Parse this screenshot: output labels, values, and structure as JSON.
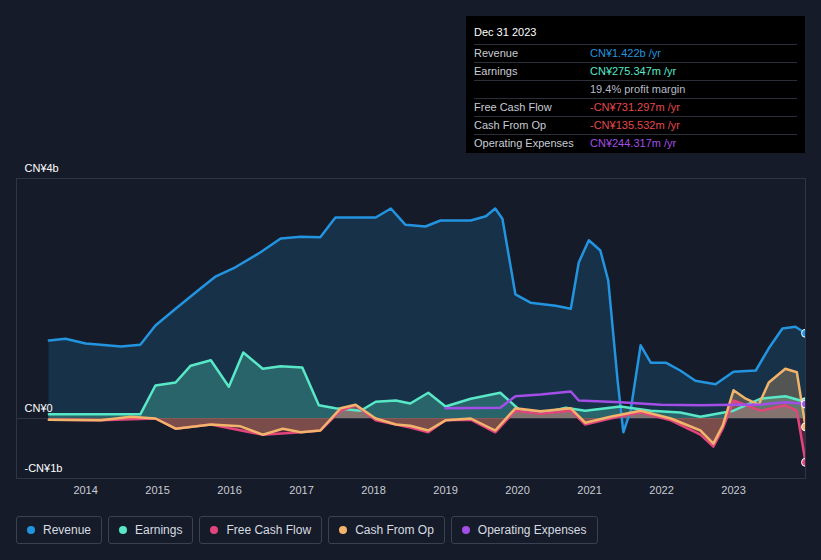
{
  "chart_data": {
    "type": "area",
    "grid": true,
    "marker": "end_dot",
    "xlim": [
      2013.04,
      2024
    ],
    "xticks": [
      2014,
      2015,
      2016,
      2017,
      2018,
      2019,
      2020,
      2021,
      2022,
      2023
    ],
    "ylim": [
      -1,
      4
    ],
    "yticks": [
      {
        "value": -1,
        "label": "-CN¥1b"
      },
      {
        "value": 0,
        "label": "CN¥0"
      },
      {
        "value": 4,
        "label": "CN¥4b"
      }
    ],
    "series": [
      {
        "name": "Revenue",
        "color": "#2394df",
        "type": "area",
        "x": [
          2013.49,
          2013.72,
          2014,
          2014.21,
          2014.49,
          2014.76,
          2014.97,
          2015.25,
          2015.6,
          2015.81,
          2016.08,
          2016.43,
          2016.71,
          2016.99,
          2017.26,
          2017.47,
          2018.03,
          2018.24,
          2018.44,
          2018.72,
          2018.93,
          2019.35,
          2019.56,
          2019.69,
          2019.79,
          2019.97,
          2020.18,
          2020.53,
          2020.74,
          2020.85,
          2020.99,
          2021.15,
          2021.26,
          2021.39,
          2021.47,
          2021.57,
          2021.71,
          2021.85,
          2022.06,
          2022.26,
          2022.47,
          2022.75,
          2023,
          2023.31,
          2023.49,
          2023.68,
          2023.86,
          2024
        ],
        "values": [
          1.3,
          1.33,
          1.25,
          1.23,
          1.2,
          1.23,
          1.55,
          1.83,
          2.17,
          2.37,
          2.52,
          2.77,
          3.0,
          3.03,
          3.02,
          3.35,
          3.35,
          3.5,
          3.23,
          3.2,
          3.3,
          3.3,
          3.37,
          3.5,
          3.33,
          2.07,
          1.93,
          1.88,
          1.83,
          2.6,
          2.97,
          2.8,
          2.3,
          0.63,
          -0.23,
          0.13,
          1.22,
          0.93,
          0.93,
          0.8,
          0.63,
          0.57,
          0.78,
          0.8,
          1.17,
          1.5,
          1.53,
          1.42
        ]
      },
      {
        "name": "Earnings",
        "color": "#58e8c7",
        "type": "area",
        "x": [
          2013.49,
          2014.76,
          2014.97,
          2015.25,
          2015.46,
          2015.74,
          2015.99,
          2016.19,
          2016.46,
          2016.71,
          2017.01,
          2017.24,
          2017.47,
          2017.82,
          2018.03,
          2018.31,
          2018.51,
          2018.76,
          2019,
          2019.35,
          2019.76,
          2020.04,
          2020.39,
          2020.67,
          2020.94,
          2021.43,
          2021.85,
          2022.26,
          2022.54,
          2023,
          2023.38,
          2023.72,
          2023.93,
          2024
        ],
        "values": [
          0.07,
          0.07,
          0.55,
          0.6,
          0.88,
          0.97,
          0.53,
          1.1,
          0.83,
          0.87,
          0.85,
          0.22,
          0.17,
          0.13,
          0.28,
          0.3,
          0.25,
          0.43,
          0.2,
          0.33,
          0.43,
          0.13,
          0.1,
          0.18,
          0.13,
          0.2,
          0.13,
          0.1,
          0.03,
          0.13,
          0.33,
          0.37,
          0.3,
          0.28
        ]
      },
      {
        "name": "Free Cash Flow",
        "color": "#e0457b",
        "type": "area",
        "x": [
          2013.49,
          2014.21,
          2014.97,
          2015.25,
          2015.74,
          2016.46,
          2016.99,
          2017.26,
          2017.54,
          2017.75,
          2018.03,
          2018.51,
          2018.76,
          2019,
          2019.35,
          2019.69,
          2019.97,
          2020.32,
          2020.74,
          2020.94,
          2021.29,
          2021.71,
          2022.13,
          2022.54,
          2022.72,
          2022.85,
          2023,
          2023.38,
          2023.72,
          2023.88,
          2024
        ],
        "values": [
          -0.02,
          -0.03,
          0,
          -0.17,
          -0.1,
          -0.27,
          -0.23,
          -0.2,
          0.13,
          0.22,
          -0.03,
          -0.15,
          -0.23,
          -0.03,
          -0.02,
          -0.23,
          0.13,
          0.08,
          0.13,
          -0.1,
          0,
          0.1,
          -0.03,
          -0.27,
          -0.47,
          -0.17,
          0.3,
          0.13,
          0.22,
          0.13,
          -0.73
        ]
      },
      {
        "name": "Cash From Op",
        "color": "#f2b36b",
        "type": "area",
        "x": [
          2013.49,
          2014.21,
          2014.63,
          2014.97,
          2015.25,
          2015.74,
          2016.15,
          2016.46,
          2016.74,
          2016.99,
          2017.26,
          2017.54,
          2017.75,
          2018.03,
          2018.31,
          2018.51,
          2018.76,
          2019,
          2019.35,
          2019.69,
          2019.97,
          2020.32,
          2020.74,
          2020.94,
          2021.29,
          2021.71,
          2022.13,
          2022.54,
          2022.72,
          2022.85,
          2023,
          2023.17,
          2023.35,
          2023.49,
          2023.72,
          2023.88,
          2024
        ],
        "values": [
          -0.02,
          -0.03,
          0.03,
          0,
          -0.17,
          -0.1,
          -0.13,
          -0.27,
          -0.17,
          -0.23,
          -0.2,
          0.17,
          0.23,
          0,
          -0.1,
          -0.12,
          -0.2,
          -0.03,
          0,
          -0.2,
          0.17,
          0.12,
          0.17,
          -0.07,
          0.03,
          0.13,
          0,
          -0.2,
          -0.42,
          -0.12,
          0.47,
          0.33,
          0.23,
          0.6,
          0.83,
          0.77,
          -0.14
        ]
      },
      {
        "name": "Operating Expenses",
        "color": "#a34ee6",
        "type": "line",
        "x": [
          2019,
          2019.76,
          2019.97,
          2020.32,
          2020.74,
          2020.85,
          2021.43,
          2021.99,
          2022.54,
          2023,
          2023.38,
          2023.72,
          2023.93,
          2024
        ],
        "values": [
          0.17,
          0.18,
          0.37,
          0.4,
          0.45,
          0.3,
          0.27,
          0.23,
          0.22,
          0.23,
          0.23,
          0.27,
          0.25,
          0.24
        ]
      }
    ],
    "tooltip": {
      "title": "Dec 31 2023",
      "rows": [
        {
          "label": "Revenue",
          "value": "CN¥1.422b /yr",
          "color": "#2394df"
        },
        {
          "label": "Earnings",
          "value": "CN¥275.347m /yr",
          "color": "#58e8c7"
        },
        {
          "value": "19.4% profit margin",
          "color": "#b8bcc6"
        },
        {
          "label": "Free Cash Flow",
          "value": "-CN¥731.297m /yr",
          "color": "#e5484d"
        },
        {
          "label": "Cash From Op",
          "value": "-CN¥135.532m /yr",
          "color": "#e5484d"
        },
        {
          "label": "Operating Expenses",
          "value": "CN¥244.317m /yr",
          "color": "#a34ee6"
        }
      ]
    }
  }
}
